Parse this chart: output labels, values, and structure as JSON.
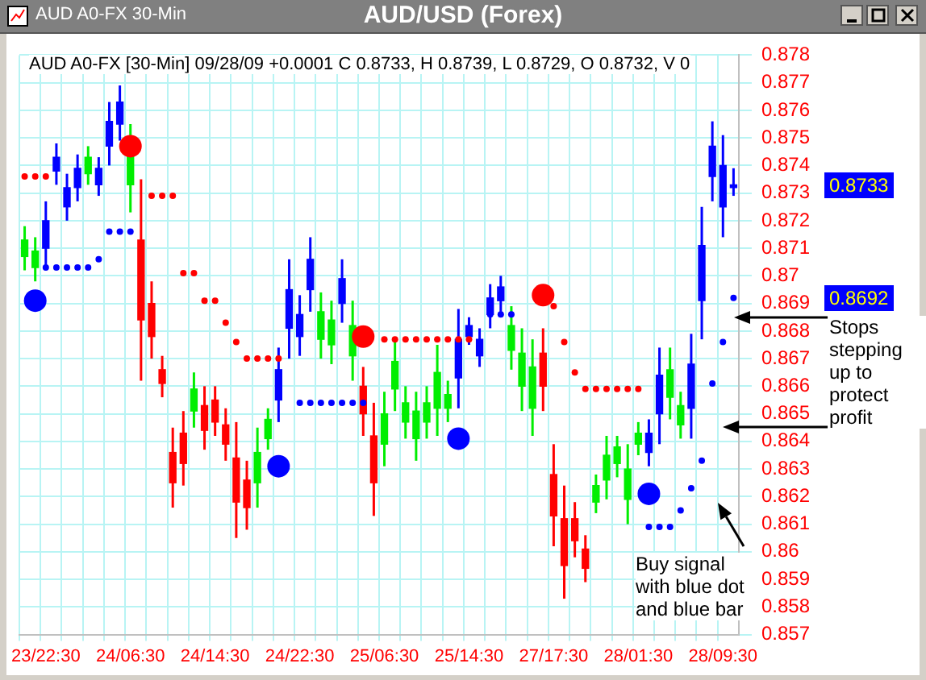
{
  "chart_data": {
    "type": "candlestick",
    "title": "AUD/USD (Forex)",
    "subtitle": "AUD A0-FX [30-Min] 09/28/09  +0.0001 C 0.8733, H 0.8739, L 0.8729, O 0.8732, V 0",
    "annotations": [
      "AUD A0-FX 30-Min",
      "Buy signal with blue dot and blue bar",
      "Stops stepping up to protect profit",
      "0.8733",
      "0.8692"
    ],
    "categories": [
      null,
      null,
      "23/22:30",
      null,
      null,
      null,
      null,
      null,
      null,
      null,
      "24/06:30",
      null,
      null,
      null,
      null,
      null,
      null,
      null,
      "24/14:30",
      null,
      null,
      null,
      null,
      null,
      null,
      null,
      "24/22:30",
      null,
      null,
      null,
      null,
      null,
      null,
      null,
      "25/06:30",
      null,
      null,
      null,
      null,
      null,
      null,
      null,
      "25/14:30",
      null,
      null,
      null,
      null,
      null,
      null,
      null,
      "27/17:30",
      null,
      null,
      null,
      null,
      null,
      null,
      null,
      "28/01:30",
      null,
      null,
      null,
      null,
      null,
      null,
      null,
      "28/09:30",
      null
    ],
    "ohlc": [
      [
        0.8707,
        0.8718,
        0.8702,
        0.8713
      ],
      [
        0.8703,
        0.8714,
        0.8698,
        0.8709
      ],
      [
        0.871,
        0.8727,
        0.8702,
        0.872
      ],
      [
        0.8738,
        0.8748,
        0.8733,
        0.8743
      ],
      [
        0.8725,
        0.8737,
        0.872,
        0.8732
      ],
      [
        0.8732,
        0.8744,
        0.8727,
        0.8739
      ],
      [
        0.8737,
        0.8747,
        0.8733,
        0.8743
      ],
      [
        0.8733,
        0.8743,
        0.8729,
        0.8739
      ],
      [
        0.8747,
        0.8763,
        0.874,
        0.8756
      ],
      [
        0.8755,
        0.8769,
        0.8749,
        0.8763
      ],
      [
        0.8733,
        0.8755,
        0.8723,
        0.8745
      ],
      [
        0.8713,
        0.8735,
        0.8662,
        0.8684
      ],
      [
        0.869,
        0.8698,
        0.867,
        0.8678
      ],
      [
        0.8666,
        0.8671,
        0.8656,
        0.8661
      ],
      [
        0.8636,
        0.8645,
        0.8616,
        0.8625
      ],
      [
        0.8643,
        0.8651,
        0.8624,
        0.8632
      ],
      [
        0.8651,
        0.8665,
        0.8645,
        0.8659
      ],
      [
        0.8653,
        0.866,
        0.8637,
        0.8644
      ],
      [
        0.8655,
        0.866,
        0.8642,
        0.8647
      ],
      [
        0.8646,
        0.8652,
        0.8633,
        0.8639
      ],
      [
        0.8634,
        0.8647,
        0.8605,
        0.8618
      ],
      [
        0.8626,
        0.8633,
        0.8608,
        0.8616
      ],
      [
        0.8625,
        0.8645,
        0.8616,
        0.8636
      ],
      [
        0.8641,
        0.8652,
        0.8637,
        0.8648
      ],
      [
        0.8655,
        0.8674,
        0.8647,
        0.8666
      ],
      [
        0.8681,
        0.8706,
        0.867,
        0.8695
      ],
      [
        0.8678,
        0.8693,
        0.8671,
        0.8686
      ],
      [
        0.8695,
        0.8714,
        0.8687,
        0.8706
      ],
      [
        0.8677,
        0.8694,
        0.867,
        0.8687
      ],
      [
        0.8675,
        0.8691,
        0.8668,
        0.8684
      ],
      [
        0.869,
        0.8706,
        0.8683,
        0.8699
      ],
      [
        0.8671,
        0.8691,
        0.8662,
        0.8682
      ],
      [
        0.866,
        0.8667,
        0.8642,
        0.865
      ],
      [
        0.8642,
        0.8654,
        0.8613,
        0.8625
      ],
      [
        0.8639,
        0.8658,
        0.8631,
        0.865
      ],
      [
        0.8659,
        0.8677,
        0.8651,
        0.8669
      ],
      [
        0.8647,
        0.866,
        0.8641,
        0.8654
      ],
      [
        0.8641,
        0.8658,
        0.8633,
        0.8651
      ],
      [
        0.8647,
        0.866,
        0.8641,
        0.8654
      ],
      [
        0.8652,
        0.8675,
        0.8642,
        0.8665
      ],
      [
        0.8652,
        0.8662,
        0.8647,
        0.8657
      ],
      [
        0.8663,
        0.8688,
        0.8652,
        0.8677
      ],
      [
        0.8678,
        0.8685,
        0.8675,
        0.8682
      ],
      [
        0.8671,
        0.8681,
        0.8667,
        0.8677
      ],
      [
        0.8686,
        0.8697,
        0.8681,
        0.8692
      ],
      [
        0.8691,
        0.87,
        0.8687,
        0.8696
      ],
      [
        0.8673,
        0.8689,
        0.8666,
        0.8682
      ],
      [
        0.866,
        0.8681,
        0.8651,
        0.8672
      ],
      [
        0.8652,
        0.8677,
        0.8642,
        0.8667
      ],
      [
        0.8672,
        0.8681,
        0.8651,
        0.866
      ],
      [
        0.8628,
        0.8639,
        0.8602,
        0.8613
      ],
      [
        0.8612,
        0.8624,
        0.8583,
        0.8595
      ],
      [
        0.8612,
        0.8618,
        0.8598,
        0.8604
      ],
      [
        0.8601,
        0.8606,
        0.8589,
        0.8594
      ],
      [
        0.8618,
        0.8628,
        0.8614,
        0.8624
      ],
      [
        0.8626,
        0.8642,
        0.8619,
        0.8635
      ],
      [
        0.8632,
        0.8642,
        0.8627,
        0.8638
      ],
      [
        0.8619,
        0.8639,
        0.861,
        0.863
      ],
      [
        0.8639,
        0.8647,
        0.8635,
        0.8643
      ],
      [
        0.8636,
        0.8648,
        0.8631,
        0.8643
      ],
      [
        0.865,
        0.8674,
        0.8639,
        0.8664
      ],
      [
        0.8656,
        0.8674,
        0.8648,
        0.8666
      ],
      [
        0.8646,
        0.8658,
        0.8641,
        0.8653
      ],
      [
        0.8652,
        0.8679,
        0.8641,
        0.8668
      ],
      [
        0.8691,
        0.8725,
        0.8677,
        0.8711
      ],
      [
        0.8736,
        0.8756,
        0.8727,
        0.8747
      ],
      [
        0.8725,
        0.8751,
        0.8714,
        0.874
      ],
      [
        0.8732,
        0.8739,
        0.8729,
        0.8733
      ]
    ],
    "colors": [
      "#00ee00",
      "#00ee00",
      "#0000ff",
      "#0000ff",
      "#0000ff",
      "#0000ff",
      "#00ee00",
      "#0000ff",
      "#0000ff",
      "#0000ff",
      "#00ee00",
      "#ff0000",
      "#ff0000",
      "#ff0000",
      "#ff0000",
      "#ff0000",
      "#00ee00",
      "#ff0000",
      "#ff0000",
      "#ff0000",
      "#ff0000",
      "#ff0000",
      "#00ee00",
      "#00ee00",
      "#0000ff",
      "#0000ff",
      "#0000ff",
      "#0000ff",
      "#00ee00",
      "#00ee00",
      "#0000ff",
      "#00ee00",
      "#ff0000",
      "#ff0000",
      "#00ee00",
      "#00ee00",
      "#00ee00",
      "#00ee00",
      "#00ee00",
      "#00ee00",
      "#00ee00",
      "#0000ff",
      "#0000ff",
      "#0000ff",
      "#0000ff",
      "#0000ff",
      "#00ee00",
      "#00ee00",
      "#00ee00",
      "#ff0000",
      "#ff0000",
      "#ff0000",
      "#ff0000",
      "#ff0000",
      "#00ee00",
      "#00ee00",
      "#00ee00",
      "#00ee00",
      "#00ee00",
      "#0000ff",
      "#0000ff",
      "#00ee00",
      "#00ee00",
      "#0000ff",
      "#0000ff",
      "#0000ff",
      "#0000ff",
      "#0000ff"
    ],
    "series": [
      {
        "type": "scatter",
        "color": "#ff0000",
        "values": [
          0.8736,
          0.8736,
          0.8736,
          null,
          null,
          null,
          null,
          null,
          null,
          null,
          null,
          null,
          0.8729,
          0.8729,
          0.8729,
          0.8701,
          0.8701,
          0.8691,
          0.8691,
          0.8683,
          0.8676,
          0.867,
          0.867,
          0.867,
          0.867,
          null,
          null,
          null,
          null,
          null,
          null,
          null,
          null,
          null,
          0.8677,
          0.8677,
          0.8677,
          0.8677,
          0.8677,
          0.8677,
          0.8677,
          0.8677,
          0.8677,
          null,
          null,
          null,
          null,
          null,
          null,
          null,
          0.8689,
          0.8676,
          0.8665,
          0.8659,
          0.8659,
          0.8659,
          0.8659,
          0.8659,
          0.8659,
          null,
          null,
          null,
          null,
          null,
          null,
          null,
          null,
          null
        ]
      },
      {
        "type": "scatter",
        "color": "#0000ff",
        "values": [
          null,
          null,
          0.8703,
          0.8703,
          0.8703,
          0.8703,
          0.8703,
          0.8706,
          0.8716,
          0.8716,
          0.8716,
          null,
          null,
          null,
          null,
          null,
          null,
          null,
          null,
          null,
          null,
          null,
          null,
          null,
          null,
          null,
          0.8654,
          0.8654,
          0.8654,
          0.8654,
          0.8654,
          0.8654,
          0.8654,
          null,
          null,
          null,
          null,
          null,
          null,
          null,
          null,
          null,
          null,
          null,
          0.8686,
          0.8686,
          0.8686,
          null,
          null,
          null,
          null,
          null,
          null,
          null,
          null,
          null,
          null,
          null,
          null,
          0.8609,
          0.8609,
          0.8609,
          0.8615,
          0.8623,
          0.8633,
          0.8661,
          0.8676,
          0.8692
        ]
      },
      {
        "type": "bubble",
        "color": "#0000ff",
        "values": [
          null,
          0.8691,
          null,
          null,
          null,
          null,
          null,
          null,
          null,
          null,
          null,
          null,
          null,
          null,
          null,
          null,
          null,
          null,
          null,
          null,
          null,
          null,
          null,
          null,
          0.8631,
          null,
          null,
          null,
          null,
          null,
          null,
          null,
          null,
          null,
          null,
          null,
          null,
          null,
          null,
          null,
          null,
          0.8641,
          null,
          null,
          null,
          null,
          null,
          null,
          null,
          null,
          null,
          null,
          null,
          null,
          null,
          null,
          null,
          null,
          null,
          0.8621,
          null,
          null,
          null,
          null,
          null,
          null,
          null,
          null
        ],
        "sizes": [
          null,
          1,
          null,
          null,
          null,
          null,
          null,
          null,
          null,
          null,
          null,
          null,
          null,
          null,
          null,
          null,
          null,
          null,
          null,
          null,
          null,
          null,
          null,
          null,
          1,
          null,
          null,
          null,
          null,
          null,
          null,
          null,
          null,
          null,
          null,
          null,
          null,
          null,
          null,
          null,
          null,
          1,
          null,
          null,
          null,
          null,
          null,
          null,
          null,
          null,
          null,
          null,
          null,
          null,
          null,
          null,
          null,
          null,
          null,
          1,
          null,
          null,
          null,
          null,
          null,
          null,
          null,
          null
        ]
      },
      {
        "type": "bubble",
        "color": "#ff0000",
        "values": [
          null,
          null,
          null,
          null,
          null,
          null,
          null,
          null,
          null,
          null,
          0.8747,
          null,
          null,
          null,
          null,
          null,
          null,
          null,
          null,
          null,
          null,
          null,
          null,
          null,
          null,
          null,
          null,
          null,
          null,
          null,
          null,
          null,
          0.8678,
          null,
          null,
          null,
          null,
          null,
          null,
          null,
          null,
          null,
          null,
          null,
          null,
          null,
          null,
          null,
          null,
          0.8693,
          null,
          null,
          null,
          null,
          null,
          null,
          null,
          null,
          null,
          null,
          null,
          null,
          null,
          null,
          null,
          null,
          null,
          null
        ],
        "sizes": [
          null,
          null,
          null,
          null,
          null,
          null,
          null,
          null,
          null,
          null,
          1,
          null,
          null,
          null,
          null,
          null,
          null,
          null,
          null,
          null,
          null,
          null,
          null,
          null,
          null,
          null,
          null,
          null,
          null,
          null,
          null,
          null,
          1,
          null,
          null,
          null,
          null,
          null,
          null,
          null,
          null,
          null,
          null,
          null,
          null,
          null,
          null,
          null,
          null,
          1,
          null,
          null,
          null,
          null,
          null,
          null,
          null,
          null,
          null,
          null,
          null,
          null,
          null,
          null,
          null,
          null,
          null,
          null
        ]
      }
    ],
    "ylim": [
      0.857,
      0.878
    ],
    "yticks": [
      0.857,
      0.858,
      0.859,
      0.86,
      0.861,
      0.862,
      0.863,
      0.864,
      0.865,
      0.866,
      0.867,
      0.868,
      0.869,
      0.87,
      0.871,
      0.872,
      0.873,
      0.874,
      0.875,
      0.876,
      0.877,
      0.878
    ],
    "grid": true,
    "legend": false,
    "marker": "circle"
  }
}
